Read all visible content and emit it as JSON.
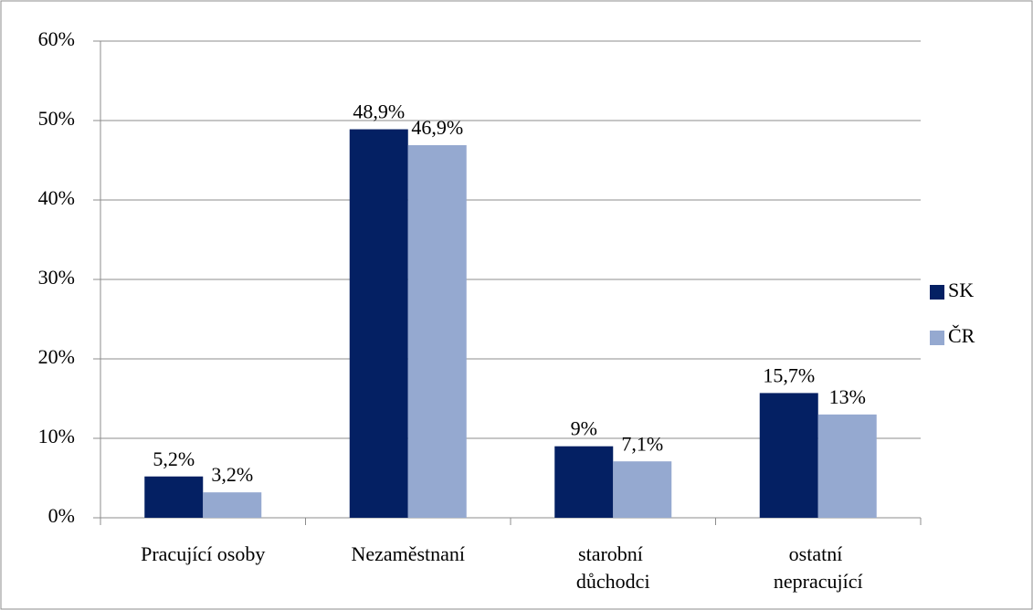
{
  "chart_data": {
    "type": "bar",
    "categories": [
      "Pracující osoby",
      "Nezaměstnaní",
      "starobní důchodci",
      "ostatní nepracující"
    ],
    "series": [
      {
        "name": "SK",
        "color": "#042063",
        "values": [
          5.2,
          48.9,
          9,
          15.7
        ],
        "value_labels": [
          "5,2%",
          "48,9%",
          "9%",
          "15,7%"
        ]
      },
      {
        "name": "ČR",
        "color": "#95a9d0",
        "values": [
          3.2,
          46.9,
          7.1,
          13
        ],
        "value_labels": [
          "3,2%",
          "46,9%",
          "7,1%",
          "13%"
        ]
      }
    ],
    "ylim": [
      0,
      60
    ],
    "yticks": [
      {
        "value": 0,
        "label": "0%"
      },
      {
        "value": 10,
        "label": "10%"
      },
      {
        "value": 20,
        "label": "20%"
      },
      {
        "value": 30,
        "label": "30%"
      },
      {
        "value": 40,
        "label": "40%"
      },
      {
        "value": 50,
        "label": "50%"
      },
      {
        "value": 60,
        "label": "60%"
      }
    ],
    "grid": true,
    "legend": "right"
  }
}
